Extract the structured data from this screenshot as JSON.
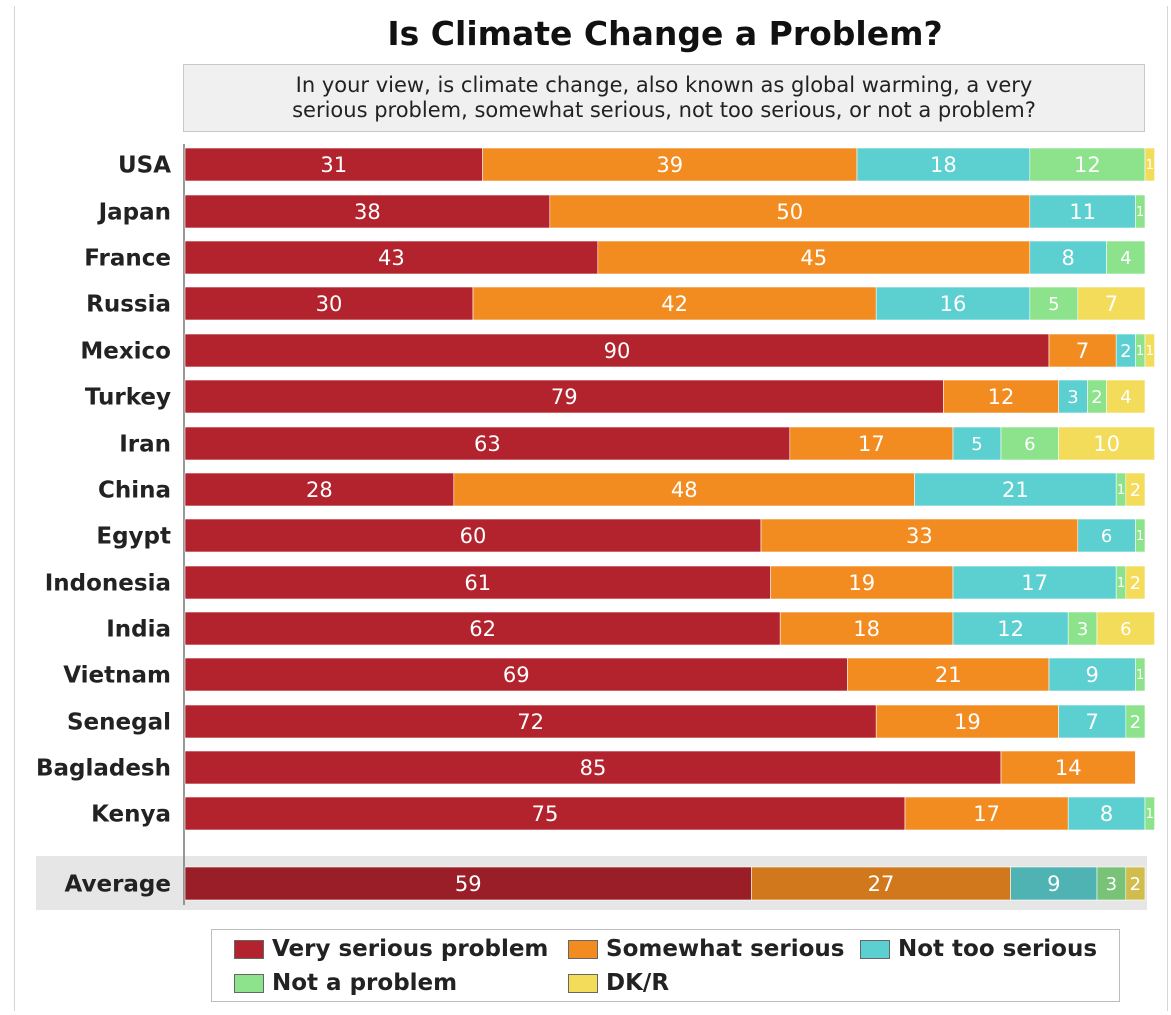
{
  "chart_data": {
    "type": "bar",
    "orientation": "horizontal",
    "stacked": true,
    "title": "Is Climate Change a Problem?",
    "subtitle_lines": [
      "In your view, is climate change, also known as global warming, a very",
      "serious problem, somewhat serious, not too serious, or not a problem?"
    ],
    "categories": [
      "USA",
      "Japan",
      "France",
      "Russia",
      "Mexico",
      "Turkey",
      "Iran",
      "China",
      "Egypt",
      "Indonesia",
      "India",
      "Vietnam",
      "Senegal",
      "Bagladesh",
      "Kenya",
      "Average"
    ],
    "highlight_category": "Average",
    "series": [
      {
        "name": "Very serious problem",
        "color": "#b3232e",
        "values": [
          31,
          38,
          43,
          30,
          90,
          79,
          63,
          28,
          60,
          61,
          62,
          69,
          72,
          85,
          75,
          59
        ]
      },
      {
        "name": "Somewhat serious",
        "color": "#f38c20",
        "values": [
          39,
          50,
          45,
          42,
          7,
          12,
          17,
          48,
          33,
          19,
          18,
          21,
          19,
          14,
          17,
          27
        ]
      },
      {
        "name": "Not too serious",
        "color": "#5ccfd0",
        "values": [
          18,
          11,
          8,
          16,
          2,
          3,
          5,
          21,
          6,
          17,
          12,
          9,
          7,
          null,
          8,
          9
        ]
      },
      {
        "name": "Not a problem",
        "color": "#8ce38c",
        "values": [
          12,
          1,
          4,
          5,
          1,
          2,
          6,
          1,
          1,
          1,
          3,
          1,
          2,
          null,
          1,
          3
        ]
      },
      {
        "name": "DK/R",
        "color": "#f2dc59",
        "values": [
          1,
          null,
          null,
          7,
          1,
          4,
          10,
          2,
          null,
          2,
          6,
          null,
          null,
          null,
          null,
          2
        ]
      }
    ],
    "legend_position": "bottom",
    "grid": false
  }
}
